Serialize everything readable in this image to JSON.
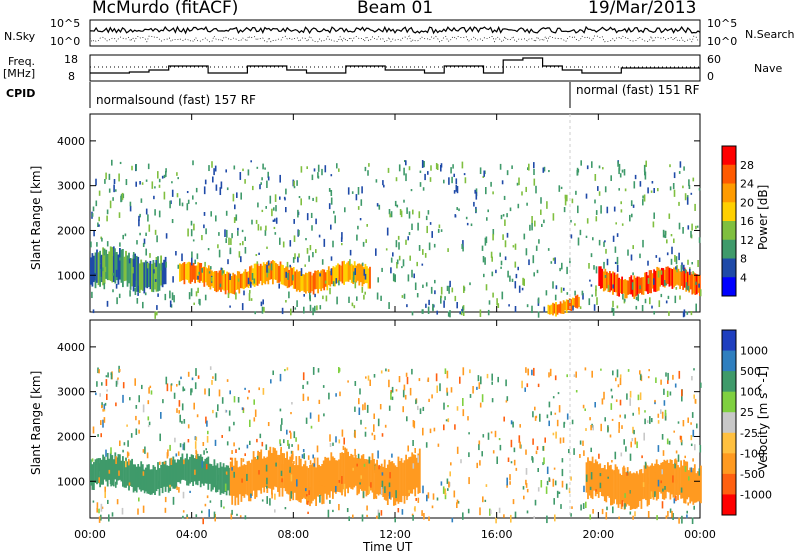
{
  "header": {
    "station": "McMurdo (fitACF)",
    "beam": "Beam 01",
    "date": "19/Mar/2013"
  },
  "sky_panel": {
    "left_label": "N.Sky",
    "right_label": "N.Search",
    "left_ticks": [
      "10^5",
      "10^0"
    ],
    "right_ticks": [
      "10^5",
      "10^0"
    ]
  },
  "freq_panel": {
    "left_label_line1": "Freq.",
    "left_label_line2": "[MHz]",
    "left_ticks": [
      "18",
      "8"
    ],
    "right_label": "Nave",
    "right_ticks": [
      "60",
      "0"
    ]
  },
  "cpid": {
    "label": "CPID",
    "mode1": "normalsound (fast) 157 RF",
    "mode2": "normal (fast) 151 RF"
  },
  "x_axis": {
    "label": "Time UT",
    "ticks": [
      "00:00",
      "04:00",
      "08:00",
      "12:00",
      "16:00",
      "20:00",
      "00:00"
    ]
  },
  "y_axis": {
    "label": "Slant Range [km]",
    "ticks": [
      "4000",
      "3000",
      "2000",
      "1000"
    ]
  },
  "power_scale": {
    "label": "Power [dB]",
    "ticks": [
      "28",
      "24",
      "20",
      "16",
      "12",
      "8",
      "4"
    ],
    "colors": [
      "#ff0000",
      "#ff5a00",
      "#ff9b00",
      "#ffd000",
      "#7fbf3f",
      "#3f9a6a",
      "#1f4aa8",
      "#0000ff"
    ]
  },
  "velocity_scale": {
    "label": "Velocity [m s^-1]",
    "ticks": [
      "1000",
      "500",
      "100",
      "25",
      "-25",
      "-100",
      "-500",
      "-1000"
    ],
    "colors": [
      "#1f3fbf",
      "#2f7fbf",
      "#3f9a6a",
      "#7fd040",
      "#c8c8c8",
      "#ffc040",
      "#ff9a20",
      "#ff6010",
      "#ff0000"
    ]
  },
  "chart_data": [
    {
      "type": "heatmap",
      "title": "Power",
      "x_range_hours": [
        0,
        24
      ],
      "ylim": [
        180,
        4600
      ],
      "ylabel": "Slant Range [km]",
      "xlabel": "",
      "colorbar_label": "Power [dB]",
      "dominant_bands": [
        {
          "start_h": 0.0,
          "end_h": 3.0,
          "range_km": [
            700,
            1500
          ],
          "power_db": 12
        },
        {
          "start_h": 3.5,
          "end_h": 7.5,
          "range_km": [
            700,
            1200
          ],
          "power_db": 24
        },
        {
          "start_h": 7.5,
          "end_h": 11.0,
          "range_km": [
            700,
            1200
          ],
          "power_db": 24
        },
        {
          "start_h": 18.0,
          "end_h": 19.2,
          "range_km": [
            200,
            500
          ],
          "power_db": 26
        },
        {
          "start_h": 20.0,
          "end_h": 24.0,
          "range_km": [
            600,
            1100
          ],
          "power_db": 28
        }
      ]
    },
    {
      "type": "heatmap",
      "title": "Velocity",
      "x_range_hours": [
        0,
        24
      ],
      "ylim": [
        180,
        4600
      ],
      "ylabel": "Slant Range [km]",
      "xlabel": "Time UT",
      "colorbar_label": "Velocity [m s^-1]",
      "dominant_bands": [
        {
          "start_h": 0.0,
          "end_h": 5.5,
          "range_km": [
            800,
            1500
          ],
          "velocity": 300
        },
        {
          "start_h": 5.5,
          "end_h": 13.0,
          "range_km": [
            600,
            1600
          ],
          "velocity": -300
        },
        {
          "start_h": 19.5,
          "end_h": 24.0,
          "range_km": [
            500,
            1400
          ],
          "velocity": -200
        }
      ]
    }
  ]
}
